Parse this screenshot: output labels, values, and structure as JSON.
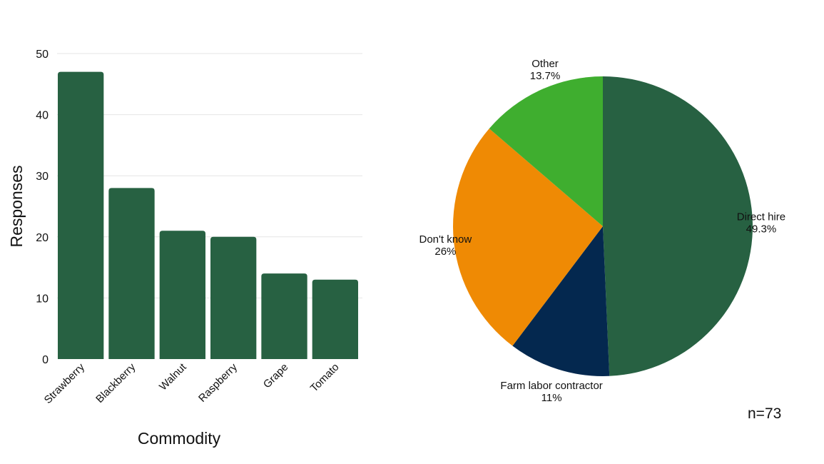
{
  "chart_data": [
    {
      "type": "bar",
      "categories": [
        "Strawberry",
        "Blackberry",
        "Walnut",
        "Raspberry",
        "Grape",
        "Tomato"
      ],
      "values": [
        47,
        28,
        21,
        20,
        14,
        13
      ],
      "xlabel": "Commodity",
      "ylabel": "Responses",
      "ylim": [
        0,
        50
      ],
      "yticks": [
        0,
        10,
        20,
        30,
        40,
        50
      ],
      "grid": true,
      "color": "#276142"
    },
    {
      "type": "pie",
      "slices": [
        {
          "label": "Direct hire",
          "value": 49.3,
          "display": "49.3%",
          "color": "#276142"
        },
        {
          "label": "Farm labor contractor",
          "value": 11,
          "display": "11%",
          "color": "#04284f"
        },
        {
          "label": "Don't know",
          "value": 26,
          "display": "26%",
          "color": "#ef8a04"
        },
        {
          "label": "Other",
          "value": 13.7,
          "display": "13.7%",
          "color": "#3fae2f"
        }
      ],
      "start": "top",
      "direction": "clockwise",
      "annotation": "n=73"
    }
  ]
}
